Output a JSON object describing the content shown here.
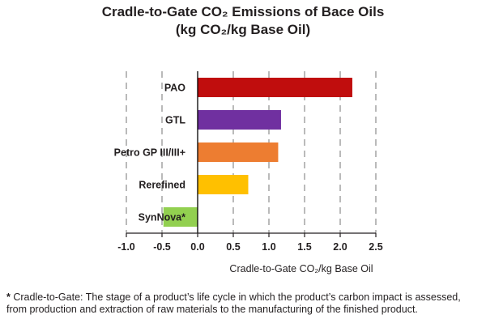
{
  "chart_data": {
    "type": "bar",
    "orientation": "horizontal",
    "title_line1": "Cradle-to-Gate CO₂ Emissions of Bace Oils",
    "title_line2": "(kg CO₂/kg Base Oil)",
    "xlabel": "Cradle-to-Gate CO₂/kg Base Oil",
    "ylabel": "",
    "categories": [
      "PAO",
      "GTL",
      "Petro GP III/III+",
      "Rerefined",
      "SynNova*"
    ],
    "values": [
      2.17,
      1.17,
      1.13,
      0.71,
      -0.48
    ],
    "colors": [
      "#c00d0d",
      "#7030a0",
      "#ed7d31",
      "#ffc000",
      "#92d050"
    ],
    "xlim": [
      -1.0,
      2.5
    ],
    "xticks": [
      -1.0,
      -0.5,
      0.0,
      0.5,
      1.0,
      1.5,
      2.0,
      2.5
    ],
    "xtick_labels": [
      "-1.0",
      "-0.5",
      "0.0",
      "0.5",
      "1.0",
      "1.5",
      "2.0",
      "2.5"
    ],
    "grid": "vertical dashed"
  },
  "footnote": {
    "marker": "*",
    "text": "Cradle-to-Gate: The stage of a product’s life cycle in which the product’s carbon impact is assessed, from production and extraction of raw materials to the manufacturing of the finished product."
  }
}
